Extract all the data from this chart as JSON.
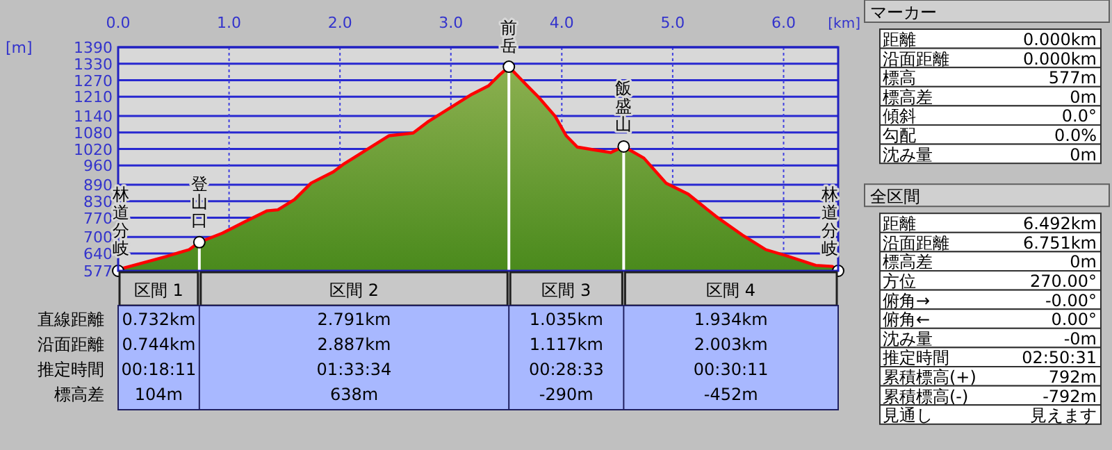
{
  "chart_data": [
    {
      "type": "area",
      "xlabel": "[km]",
      "ylabel": "[m]",
      "grid": true,
      "xlim": [
        0,
        6.492
      ],
      "ylim": [
        577,
        1390
      ],
      "xticks": [
        {
          "value": 0,
          "label": "0.0"
        },
        {
          "value": 1,
          "label": "1.0"
        },
        {
          "value": 2,
          "label": "2.0"
        },
        {
          "value": 3,
          "label": "3.0"
        },
        {
          "value": 4,
          "label": "4.0"
        },
        {
          "value": 5,
          "label": "5.0"
        },
        {
          "value": 6,
          "label": "6.0"
        }
      ],
      "yticks": [
        577,
        640,
        700,
        770,
        830,
        890,
        960,
        1020,
        1080,
        1140,
        1210,
        1270,
        1330,
        1390
      ],
      "series": [
        {
          "type": "area",
          "color": "#ff0000",
          "x": [
            0,
            0.01,
            0.14,
            0.44,
            0.64,
            0.732,
            0.94,
            1.14,
            1.34,
            1.44,
            1.59,
            1.74,
            1.94,
            2.04,
            2.24,
            2.44,
            2.66,
            2.79,
            2.99,
            3.19,
            3.34,
            3.44,
            3.523,
            3.64,
            3.79,
            3.94,
            4.04,
            4.14,
            4.29,
            4.44,
            4.558,
            4.74,
            4.94,
            5.14,
            5.39,
            5.64,
            5.84,
            6.04,
            6.29,
            6.44,
            6.492
          ],
          "values": [
            577,
            583,
            597,
            630,
            654,
            681,
            714,
            755,
            795,
            799,
            836,
            896,
            937,
            967,
            1017,
            1068,
            1078,
            1118,
            1169,
            1219,
            1250,
            1290,
            1319,
            1270,
            1209,
            1139,
            1068,
            1027,
            1017,
            1007,
            1029,
            987,
            896,
            856,
            775,
            704,
            654,
            630,
            597,
            593,
            577
          ]
        },
        {
          "type": "lollipop",
          "color": "#ffffff",
          "marker": "circle",
          "x": [
            0,
            0.732,
            3.523,
            4.558,
            6.492
          ],
          "values": [
            577,
            681,
            1319,
            1029,
            577
          ]
        }
      ],
      "annotations": [
        {
          "text": "林道分岐",
          "x": 0,
          "y": 577
        },
        {
          "text": "登山口",
          "x": 0.732,
          "y": 681
        },
        {
          "text": "前岳",
          "x": 3.523,
          "y": 1319
        },
        {
          "text": "飯盛山",
          "x": 4.558,
          "y": 1029
        },
        {
          "text": "林道分岐",
          "x": 6.492,
          "y": 577
        }
      ]
    },
    {
      "type": "other",
      "categories": [
        "区間 1",
        "区間 2",
        "区間 3",
        "区間 4"
      ],
      "y_categories": [
        "直線距離",
        "沿面距離",
        "推定時間",
        "標高差"
      ],
      "cell_labels": [
        [
          "0.732km",
          "2.791km",
          "1.035km",
          "1.934km"
        ],
        [
          "0.744km",
          "2.887km",
          "1.117km",
          "2.003km"
        ],
        [
          "00:18:11",
          "01:33:34",
          "00:28:33",
          "00:30:11"
        ],
        [
          "104m",
          "638m",
          "-290m",
          "-452m"
        ]
      ]
    },
    {
      "type": "other",
      "title": "マーカー",
      "y_categories": [
        "距離",
        "沿面距離",
        "標高",
        "標高差",
        "傾斜",
        "勾配",
        "沈み量"
      ],
      "cell_labels": [
        [
          "0.000km"
        ],
        [
          "0.000km"
        ],
        [
          "577m"
        ],
        [
          "0m"
        ],
        [
          "0.0°"
        ],
        [
          "0.0%"
        ],
        [
          "0m"
        ]
      ]
    },
    {
      "type": "other",
      "title": "全区間",
      "y_categories": [
        "距離",
        "沿面距離",
        "標高差",
        "方位",
        "俯角→",
        "俯角←",
        "沈み量",
        "推定時間",
        "累積標高(+)",
        "累積標高(-)",
        "見通し"
      ],
      "cell_labels": [
        [
          "6.492km"
        ],
        [
          "6.751km"
        ],
        [
          "0m"
        ],
        [
          "270.00°"
        ],
        [
          "-0.00°"
        ],
        [
          "0.00°"
        ],
        [
          "-0m"
        ],
        [
          "02:50:31"
        ],
        [
          "792m"
        ],
        [
          "-792m"
        ],
        [
          "見えます"
        ]
      ]
    }
  ]
}
